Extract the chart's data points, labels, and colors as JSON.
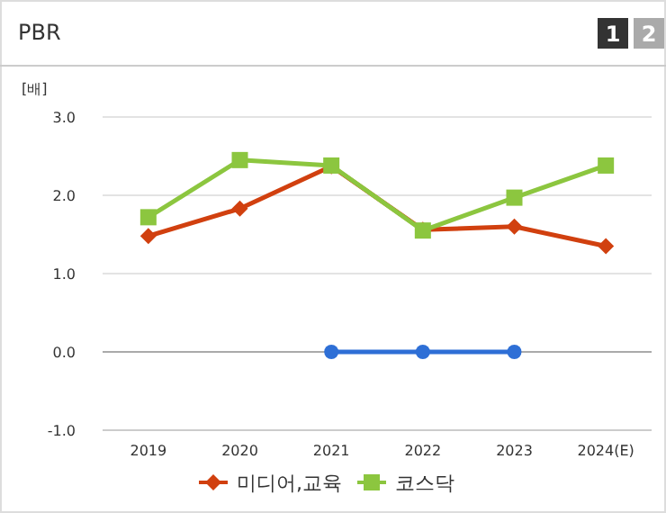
{
  "chart_data": {
    "type": "line",
    "title": "PBR",
    "ylabel": "[배]",
    "annotations": [
      "1",
      "2"
    ],
    "categories": [
      "2019",
      "2020",
      "2021",
      "2022",
      "2023",
      "2024(E)"
    ],
    "series": [
      {
        "color": "#2e6fd6",
        "marker": "circle",
        "values": [
          null,
          null,
          0,
          0,
          0,
          null
        ]
      },
      {
        "name": "미디어,교육",
        "color": "#d1400f",
        "marker": "diamond",
        "values": [
          1.48,
          1.83,
          2.37,
          1.56,
          1.6,
          1.35
        ]
      },
      {
        "name": "코스닥",
        "color": "#8cc63f",
        "marker": "square",
        "values": [
          1.72,
          2.45,
          2.38,
          1.55,
          1.97,
          2.38
        ]
      }
    ],
    "ylim": [
      -1,
      3
    ],
    "yticks": [
      {
        "value": -1,
        "label": "-1.0"
      },
      {
        "value": 0,
        "label": "0.0"
      },
      {
        "value": 1,
        "label": "1.0"
      },
      {
        "value": 2,
        "label": "2.0"
      },
      {
        "value": 3,
        "label": "3.0"
      }
    ],
    "grid": "y",
    "legend": "bottom",
    "line_style": "solid"
  }
}
